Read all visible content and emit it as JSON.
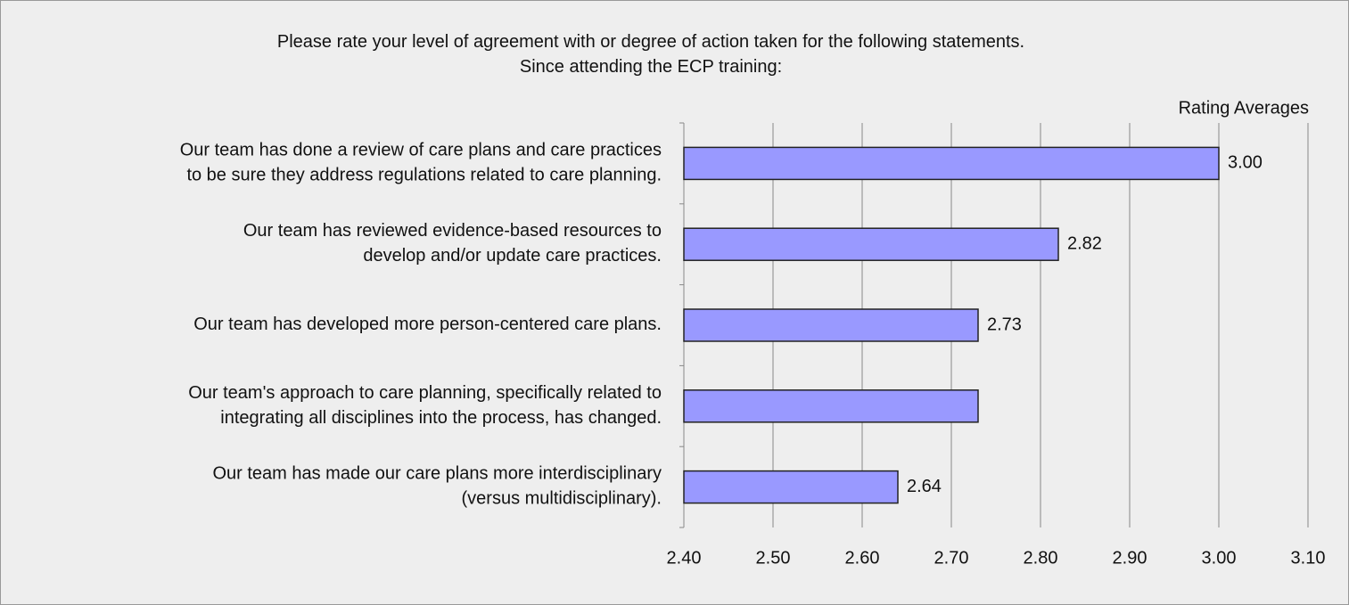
{
  "chart_data": {
    "type": "hbar",
    "title": "Please rate your level of agreement with or degree of action taken for the following statements.\nSince attending the ECP training:",
    "categories": [
      "Our team has done a review of care plans and care practices\nto be sure they address regulations related to care planning.",
      "Our team has reviewed evidence-based resources to\ndevelop and/or update care practices.",
      "Our team has developed more person-centered care plans.",
      "Our team's approach to care planning, specifically related to\nintegrating all disciplines into the process, has changed.",
      "Our team has made our care plans more interdisciplinary\n(versus multidisciplinary)."
    ],
    "series": [
      {
        "name": "Rating Averages",
        "color": "#9999ff",
        "values": [
          3.0,
          2.82,
          2.73,
          2.73,
          2.64
        ],
        "value_labels": [
          "3.00",
          "2.82",
          "2.73",
          null,
          "2.64"
        ]
      }
    ],
    "xlim": [
      2.4,
      3.1
    ],
    "xticks": [
      {
        "value": 2.4,
        "label": "2.40"
      },
      {
        "value": 2.5,
        "label": "2.50"
      },
      {
        "value": 2.6,
        "label": "2.60"
      },
      {
        "value": 2.7,
        "label": "2.70"
      },
      {
        "value": 2.8,
        "label": "2.80"
      },
      {
        "value": 2.9,
        "label": "2.90"
      },
      {
        "value": 3.0,
        "label": "3.00"
      },
      {
        "value": 3.1,
        "label": "3.10"
      }
    ],
    "grid": true
  }
}
